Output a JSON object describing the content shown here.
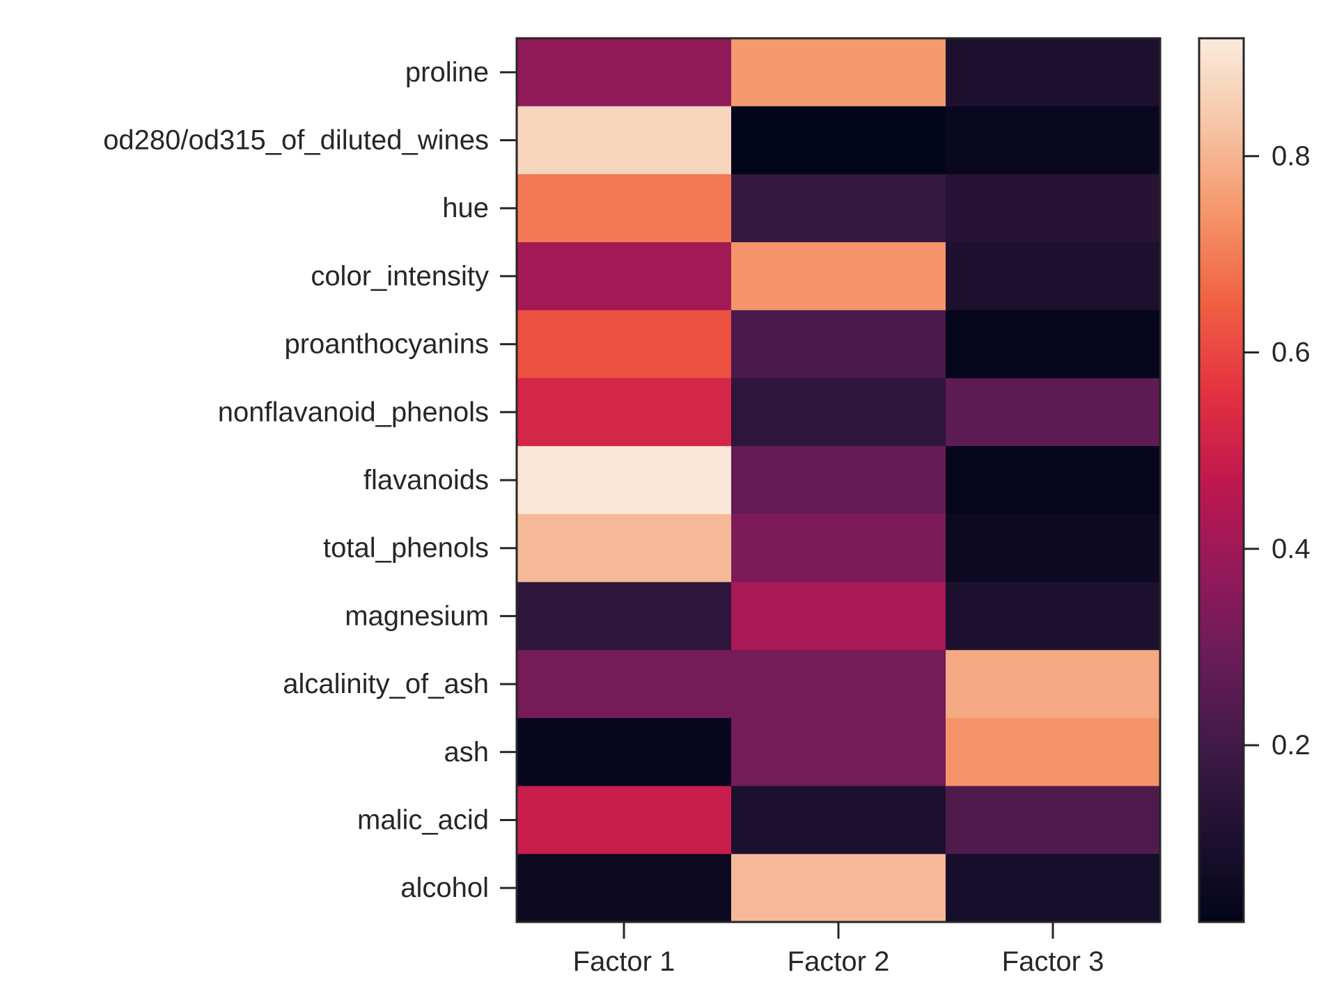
{
  "chart_data": {
    "type": "heatmap",
    "x_categories": [
      "Factor 1",
      "Factor 2",
      "Factor 3"
    ],
    "y_categories": [
      "proline",
      "od280/od315_of_diluted_wines",
      "hue",
      "color_intensity",
      "proanthocyanins",
      "nonflavanoid_phenols",
      "flavanoids",
      "total_phenols",
      "magnesium",
      "alcalinity_of_ash",
      "ash",
      "malic_acid",
      "alcohol"
    ],
    "values": [
      [
        0.37,
        0.75,
        0.11
      ],
      [
        0.87,
        0.02,
        0.04
      ],
      [
        0.69,
        0.17,
        0.13
      ],
      [
        0.41,
        0.74,
        0.11
      ],
      [
        0.62,
        0.22,
        0.03
      ],
      [
        0.52,
        0.15,
        0.26
      ],
      [
        0.91,
        0.28,
        0.03
      ],
      [
        0.81,
        0.33,
        0.05
      ],
      [
        0.15,
        0.42,
        0.11
      ],
      [
        0.31,
        0.31,
        0.78
      ],
      [
        0.03,
        0.31,
        0.74
      ],
      [
        0.49,
        0.1,
        0.23
      ],
      [
        0.05,
        0.81,
        0.08
      ]
    ],
    "colorbar": {
      "min": 0.02,
      "max": 0.92,
      "ticks": [
        0.2,
        0.4,
        0.6,
        0.8
      ],
      "tick_labels": [
        "0.2",
        "0.4",
        "0.6",
        "0.8"
      ]
    },
    "colormap": "rocket"
  }
}
